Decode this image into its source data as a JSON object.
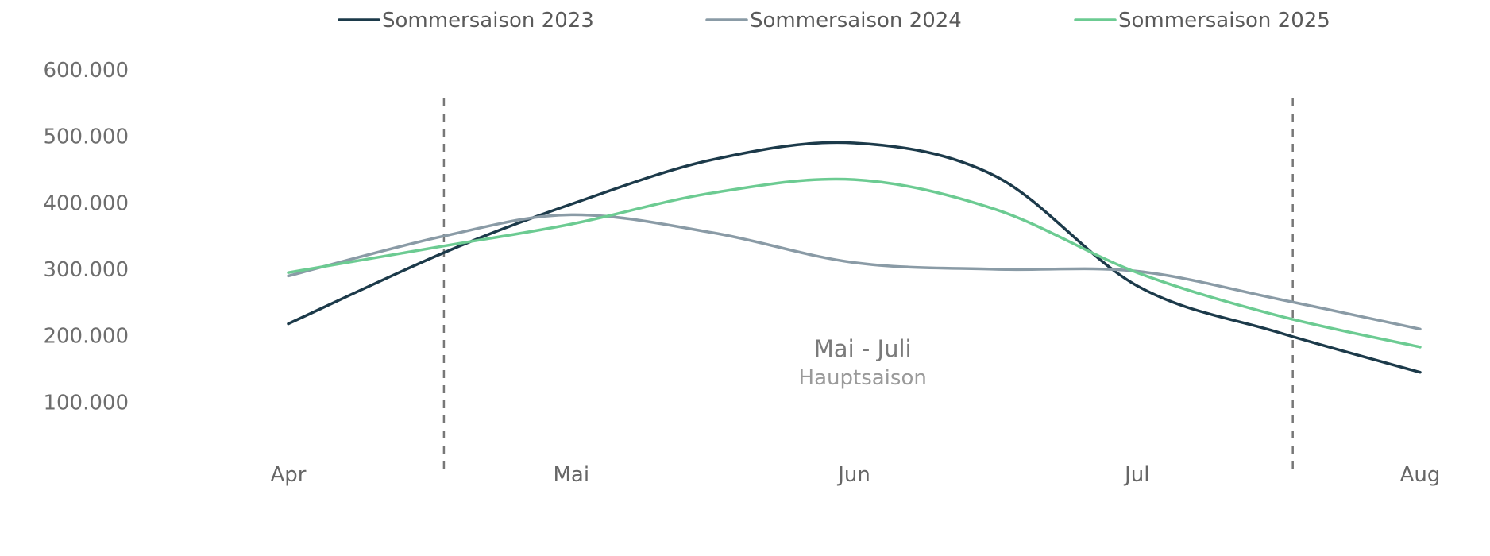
{
  "chart_data": {
    "type": "line",
    "title": "",
    "xlabel": "",
    "ylabel": "",
    "categories": [
      "Apr",
      "Mai",
      "Jun",
      "Jul",
      "Aug"
    ],
    "y_ticks": [
      "100.000",
      "200.000",
      "300.000",
      "400.000",
      "500.000",
      "600.000"
    ],
    "ylim": [
      0,
      600000
    ],
    "grid": false,
    "legend_position": "top",
    "series": [
      {
        "name": "Sommersaison 2023",
        "color": "#1c3a4a",
        "points": [
          [
            0,
            218000
          ],
          [
            0.55,
            325000
          ],
          [
            1.0,
            398000
          ],
          [
            1.5,
            465000
          ],
          [
            2.0,
            490000
          ],
          [
            2.5,
            440000
          ],
          [
            3.0,
            275000
          ],
          [
            3.5,
            205000
          ],
          [
            4.0,
            145000
          ]
        ]
      },
      {
        "name": "Sommersaison 2024",
        "color": "#8a9ba6",
        "points": [
          [
            0,
            290000
          ],
          [
            0.55,
            350000
          ],
          [
            1.0,
            382000
          ],
          [
            1.5,
            355000
          ],
          [
            2.0,
            310000
          ],
          [
            2.5,
            300000
          ],
          [
            3.0,
            297000
          ],
          [
            3.5,
            255000
          ],
          [
            4.0,
            210000
          ]
        ]
      },
      {
        "name": "Sommersaison 2025",
        "color": "#6ccb92",
        "points": [
          [
            0,
            295000
          ],
          [
            0.55,
            335000
          ],
          [
            1.0,
            368000
          ],
          [
            1.5,
            415000
          ],
          [
            2.0,
            435000
          ],
          [
            2.5,
            390000
          ],
          [
            3.0,
            295000
          ],
          [
            3.5,
            230000
          ],
          [
            4.0,
            183000
          ]
        ]
      }
    ],
    "reference_lines": [
      0.55,
      3.55
    ],
    "annotation": {
      "x": 2.03,
      "title": "Mai - Juli",
      "subtitle": "Hauptsaison"
    }
  }
}
